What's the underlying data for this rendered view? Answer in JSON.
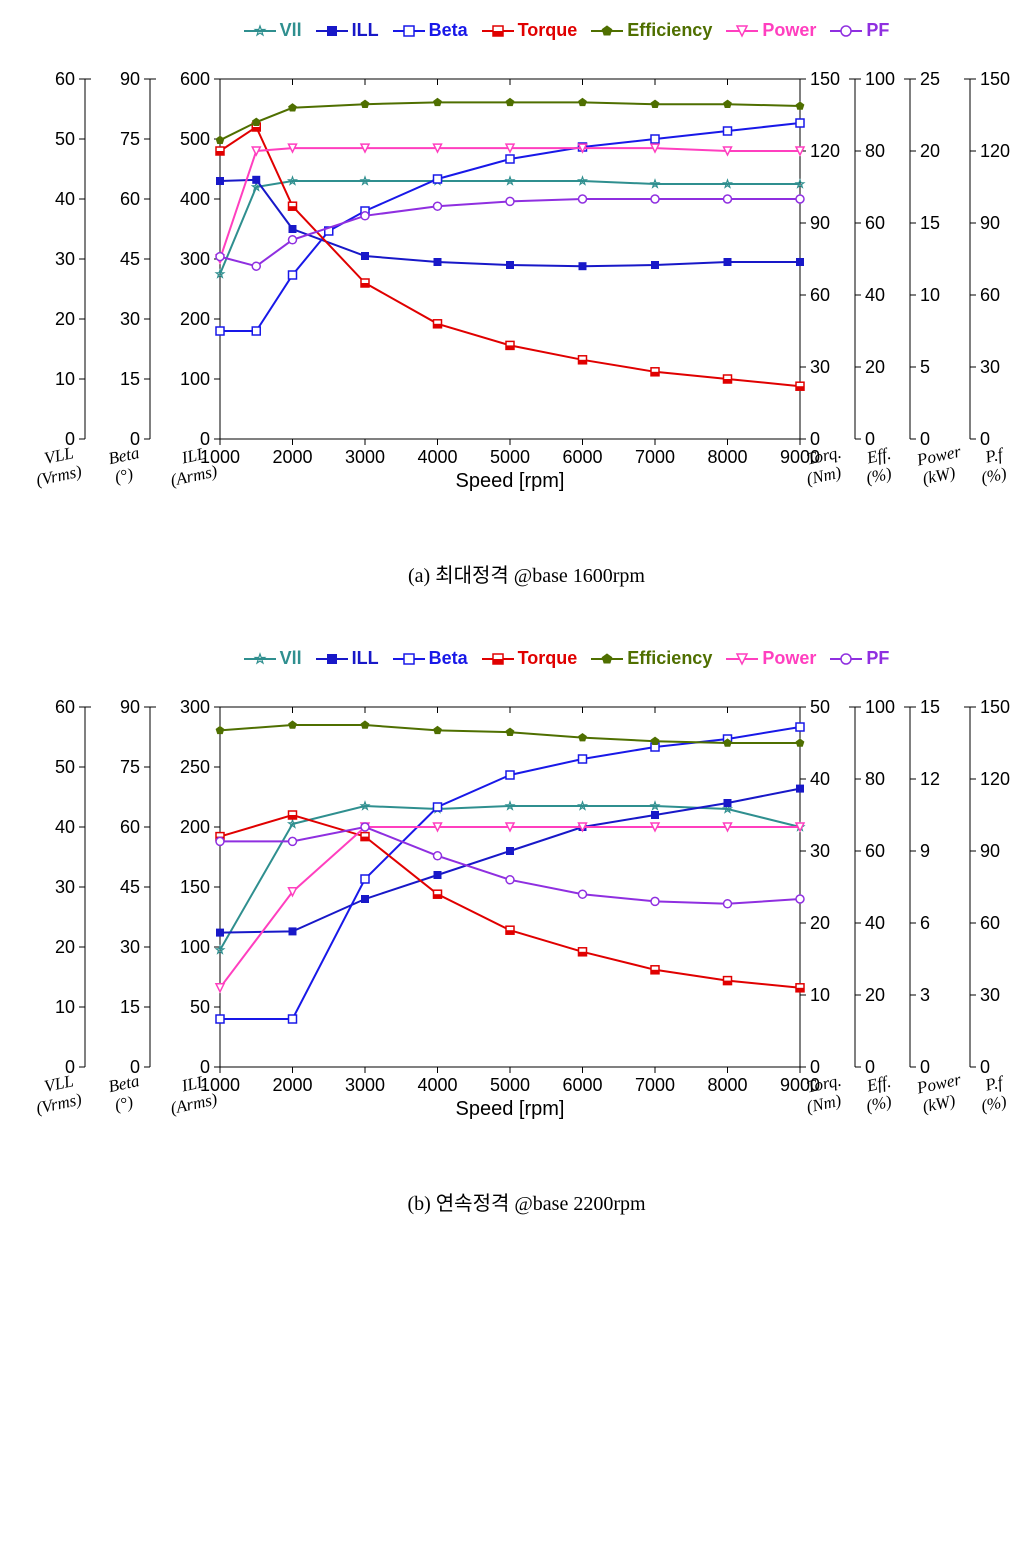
{
  "captions": {
    "a": "(a) 최대정격 @base 1600rpm",
    "b": "(b) 연속정격 @base 2200rpm"
  },
  "legend": [
    {
      "label": "Vll",
      "color": "#2f8f8f",
      "marker": "star-open"
    },
    {
      "label": "ILL",
      "color": "#1818c8",
      "marker": "square-fill"
    },
    {
      "label": "Beta",
      "color": "#1818e8",
      "marker": "square-open"
    },
    {
      "label": "Torque",
      "color": "#e00000",
      "marker": "square-half"
    },
    {
      "label": "Efficiency",
      "color": "#4f6f00",
      "marker": "pentagon-fill"
    },
    {
      "label": "Power",
      "color": "#ff3fbf",
      "marker": "tri-down-open"
    },
    {
      "label": "PF",
      "color": "#8f2fe0",
      "marker": "circle-open"
    }
  ],
  "chart_common": {
    "xlabel": "Speed [rpm]",
    "x_ticks": [
      1000,
      2000,
      3000,
      4000,
      5000,
      6000,
      7000,
      8000,
      9000
    ],
    "axis_labels_left": [
      {
        "top": "VLL",
        "bot": "(Vrms)"
      },
      {
        "top": "Beta",
        "bot": "(°)"
      },
      {
        "top": "ILL",
        "bot": "(Arms)"
      }
    ],
    "axis_labels_right": [
      {
        "top": "Torq.",
        "bot": "(Nm)"
      },
      {
        "top": "Eff.",
        "bot": "(%)"
      },
      {
        "top": "Power",
        "bot": "(kW)"
      },
      {
        "top": "P.f",
        "bot": "(%)"
      }
    ],
    "background_color": "#ffffff",
    "tick_font_size": 18,
    "marker_size": 8,
    "line_width": 2
  },
  "chart_a": {
    "left_axes": [
      {
        "min": 0,
        "max": 60,
        "step": 10,
        "label": "VLL"
      },
      {
        "min": 0,
        "max": 90,
        "step": 15,
        "label": "Beta"
      },
      {
        "min": 0,
        "max": 600,
        "step": 100,
        "label": "ILL"
      }
    ],
    "right_axes": [
      {
        "min": 0,
        "max": 150,
        "step": 30,
        "label": "Torq"
      },
      {
        "min": 0,
        "max": 100,
        "step": 20,
        "hidden_0": false,
        "label": "Eff"
      },
      {
        "min": 0,
        "max": 25,
        "step": 5,
        "label": "Power"
      },
      {
        "min": 0,
        "max": 150,
        "step": 30,
        "label": "PF",
        "partial": true
      }
    ],
    "series": {
      "Vll": {
        "axis": "left0",
        "color": "#2f8f8f",
        "marker": "star-open",
        "data": [
          [
            1000,
            27.5
          ],
          [
            1500,
            42
          ],
          [
            2000,
            43
          ],
          [
            3000,
            43
          ],
          [
            4000,
            43
          ],
          [
            5000,
            43
          ],
          [
            6000,
            43
          ],
          [
            7000,
            42.5
          ],
          [
            8000,
            42.5
          ],
          [
            9000,
            42.5
          ]
        ]
      },
      "ILL": {
        "axis": "left2",
        "color": "#1818c8",
        "marker": "square-fill",
        "data": [
          [
            1000,
            430
          ],
          [
            1500,
            432
          ],
          [
            2000,
            350
          ],
          [
            3000,
            305
          ],
          [
            4000,
            295
          ],
          [
            5000,
            290
          ],
          [
            6000,
            288
          ],
          [
            7000,
            290
          ],
          [
            8000,
            295
          ],
          [
            9000,
            295
          ]
        ]
      },
      "Beta": {
        "axis": "left1",
        "color": "#1818e8",
        "marker": "square-open",
        "data": [
          [
            1000,
            27
          ],
          [
            1500,
            27
          ],
          [
            2000,
            41
          ],
          [
            2500,
            52
          ],
          [
            3000,
            57
          ],
          [
            4000,
            65
          ],
          [
            5000,
            70
          ],
          [
            6000,
            73
          ],
          [
            7000,
            75
          ],
          [
            8000,
            77
          ],
          [
            9000,
            79
          ]
        ]
      },
      "Torque": {
        "axis": "right0",
        "color": "#e00000",
        "marker": "square-half",
        "data": [
          [
            1000,
            120
          ],
          [
            1500,
            130
          ],
          [
            2000,
            97
          ],
          [
            3000,
            65
          ],
          [
            4000,
            48
          ],
          [
            5000,
            39
          ],
          [
            6000,
            33
          ],
          [
            7000,
            28
          ],
          [
            8000,
            25
          ],
          [
            9000,
            22
          ]
        ]
      },
      "Efficiency": {
        "axis": "right1",
        "color": "#4f6f00",
        "marker": "pentagon-fill",
        "data": [
          [
            1000,
            83
          ],
          [
            1500,
            88
          ],
          [
            2000,
            92
          ],
          [
            3000,
            93
          ],
          [
            4000,
            93.5
          ],
          [
            5000,
            93.5
          ],
          [
            6000,
            93.5
          ],
          [
            7000,
            93
          ],
          [
            8000,
            93
          ],
          [
            9000,
            92.5
          ]
        ]
      },
      "Power": {
        "axis": "right2",
        "color": "#ff3fbf",
        "marker": "tri-down-open",
        "data": [
          [
            1000,
            12.5
          ],
          [
            1500,
            20
          ],
          [
            2000,
            20.2
          ],
          [
            3000,
            20.2
          ],
          [
            4000,
            20.2
          ],
          [
            5000,
            20.2
          ],
          [
            6000,
            20.2
          ],
          [
            7000,
            20.2
          ],
          [
            8000,
            20
          ],
          [
            9000,
            20
          ]
        ]
      },
      "PF": {
        "axis": "right3",
        "color": "#8f2fe0",
        "marker": "circle-open",
        "data": [
          [
            1000,
            76
          ],
          [
            1500,
            72
          ],
          [
            2000,
            83
          ],
          [
            3000,
            93
          ],
          [
            4000,
            97
          ],
          [
            5000,
            99
          ],
          [
            6000,
            100
          ],
          [
            7000,
            100
          ],
          [
            8000,
            100
          ],
          [
            9000,
            100
          ]
        ]
      }
    }
  },
  "chart_b": {
    "left_axes": [
      {
        "min": 0,
        "max": 60,
        "step": 10,
        "label": "VLL"
      },
      {
        "min": 0,
        "max": 90,
        "step": 15,
        "label": "Beta"
      },
      {
        "min": 0,
        "max": 300,
        "step": 50,
        "label": "ILL"
      }
    ],
    "right_axes": [
      {
        "min": 0,
        "max": 50,
        "step": 10,
        "label": "Torq"
      },
      {
        "min": 0,
        "max": 100,
        "step": 20,
        "label": "Eff"
      },
      {
        "min": 0,
        "max": 15,
        "step": 3,
        "label": "Power"
      },
      {
        "min": 0,
        "max": 150,
        "step": 30,
        "label": "PF"
      }
    ],
    "series": {
      "Vll": {
        "axis": "left0",
        "color": "#2f8f8f",
        "marker": "star-open",
        "data": [
          [
            1000,
            19.5
          ],
          [
            2000,
            40.5
          ],
          [
            3000,
            43.5
          ],
          [
            4000,
            43
          ],
          [
            5000,
            43.5
          ],
          [
            6000,
            43.5
          ],
          [
            7000,
            43.5
          ],
          [
            8000,
            43
          ],
          [
            9000,
            40
          ]
        ]
      },
      "ILL": {
        "axis": "left2",
        "color": "#1818c8",
        "marker": "square-fill",
        "data": [
          [
            1000,
            112
          ],
          [
            2000,
            113
          ],
          [
            3000,
            140
          ],
          [
            4000,
            160
          ],
          [
            5000,
            180
          ],
          [
            6000,
            200
          ],
          [
            7000,
            210
          ],
          [
            8000,
            220
          ],
          [
            9000,
            232
          ]
        ]
      },
      "Beta": {
        "axis": "left1",
        "color": "#1818e8",
        "marker": "square-open",
        "data": [
          [
            1000,
            12
          ],
          [
            2000,
            12
          ],
          [
            3000,
            47
          ],
          [
            4000,
            65
          ],
          [
            5000,
            73
          ],
          [
            6000,
            77
          ],
          [
            7000,
            80
          ],
          [
            8000,
            82
          ],
          [
            9000,
            85
          ]
        ]
      },
      "Torque": {
        "axis": "right0",
        "color": "#e00000",
        "marker": "square-half",
        "data": [
          [
            1000,
            32
          ],
          [
            2000,
            35
          ],
          [
            3000,
            32
          ],
          [
            4000,
            24
          ],
          [
            5000,
            19
          ],
          [
            6000,
            16
          ],
          [
            7000,
            13.5
          ],
          [
            8000,
            12
          ],
          [
            9000,
            11
          ]
        ]
      },
      "Efficiency": {
        "axis": "right1",
        "color": "#4f6f00",
        "marker": "pentagon-fill",
        "data": [
          [
            1000,
            93.5
          ],
          [
            2000,
            95
          ],
          [
            3000,
            95
          ],
          [
            4000,
            93.5
          ],
          [
            5000,
            93
          ],
          [
            6000,
            91.5
          ],
          [
            7000,
            90.5
          ],
          [
            8000,
            90
          ],
          [
            9000,
            90
          ]
        ]
      },
      "Power": {
        "axis": "right2",
        "color": "#ff3fbf",
        "marker": "tri-down-open",
        "data": [
          [
            1000,
            3.3
          ],
          [
            2000,
            7.3
          ],
          [
            3000,
            10
          ],
          [
            4000,
            10
          ],
          [
            5000,
            10
          ],
          [
            6000,
            10
          ],
          [
            7000,
            10
          ],
          [
            8000,
            10
          ],
          [
            9000,
            10
          ]
        ]
      },
      "PF": {
        "axis": "right3",
        "color": "#8f2fe0",
        "marker": "circle-open",
        "data": [
          [
            1000,
            94
          ],
          [
            2000,
            94
          ],
          [
            3000,
            100
          ],
          [
            4000,
            88
          ],
          [
            5000,
            78
          ],
          [
            6000,
            72
          ],
          [
            7000,
            69
          ],
          [
            8000,
            68
          ],
          [
            9000,
            70
          ]
        ]
      }
    }
  }
}
